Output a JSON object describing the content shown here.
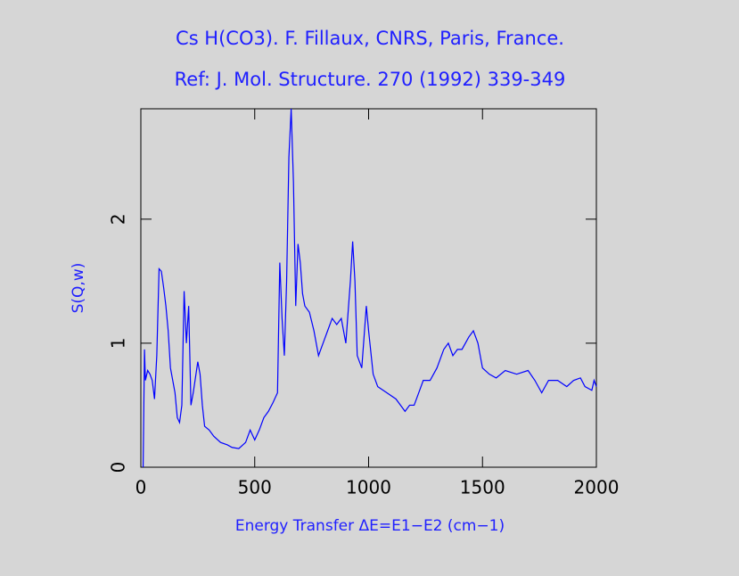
{
  "chart_data": {
    "type": "line",
    "title": "Cs H(CO3). F. Fillaux, CNRS, Paris, France.",
    "subtitle": "Ref: J. Mol. Structure. 270 (1992) 339-349",
    "x_label": "Energy Transfer ΔE=E1−E2 (cm−1)",
    "y_label": "S(Q,w)",
    "xlim": [
      0,
      2000
    ],
    "ylim": [
      0,
      2.89
    ],
    "xticks": [
      0,
      500,
      1000,
      1500,
      2000
    ],
    "yticks": [
      0,
      1,
      2
    ],
    "grid": false,
    "series": [
      {
        "name": "S(Q,w)",
        "color": "#0000ff",
        "x": [
          10,
          16,
          20,
          30,
          40,
          50,
          60,
          70,
          80,
          90,
          100,
          110,
          120,
          130,
          140,
          150,
          160,
          170,
          180,
          190,
          200,
          210,
          220,
          230,
          250,
          260,
          270,
          280,
          300,
          320,
          350,
          380,
          400,
          430,
          460,
          480,
          500,
          520,
          540,
          560,
          580,
          600,
          610,
          620,
          630,
          640,
          650,
          660,
          670,
          680,
          690,
          700,
          710,
          720,
          740,
          760,
          780,
          800,
          820,
          840,
          860,
          880,
          900,
          920,
          930,
          940,
          950,
          970,
          990,
          1000,
          1020,
          1040,
          1080,
          1120,
          1160,
          1180,
          1200,
          1220,
          1240,
          1270,
          1300,
          1330,
          1350,
          1370,
          1390,
          1410,
          1440,
          1460,
          1480,
          1500,
          1530,
          1560,
          1600,
          1650,
          1700,
          1730,
          1760,
          1790,
          1830,
          1870,
          1900,
          1930,
          1950,
          1980,
          1990,
          2000
        ],
        "values": [
          0,
          0.95,
          0.7,
          0.78,
          0.75,
          0.7,
          0.55,
          0.9,
          1.6,
          1.58,
          1.45,
          1.3,
          1.1,
          0.8,
          0.7,
          0.6,
          0.4,
          0.36,
          0.5,
          1.42,
          1.0,
          1.3,
          0.5,
          0.6,
          0.85,
          0.75,
          0.5,
          0.33,
          0.3,
          0.25,
          0.2,
          0.18,
          0.16,
          0.15,
          0.2,
          0.3,
          0.22,
          0.3,
          0.4,
          0.45,
          0.52,
          0.6,
          1.65,
          1.2,
          0.9,
          1.5,
          2.5,
          2.89,
          2.3,
          1.3,
          1.8,
          1.65,
          1.4,
          1.3,
          1.25,
          1.1,
          0.9,
          1.0,
          1.1,
          1.2,
          1.15,
          1.2,
          1.0,
          1.5,
          1.82,
          1.5,
          0.9,
          0.8,
          1.3,
          1.1,
          0.75,
          0.65,
          0.6,
          0.55,
          0.45,
          0.5,
          0.5,
          0.6,
          0.7,
          0.7,
          0.8,
          0.95,
          1.0,
          0.9,
          0.95,
          0.95,
          1.05,
          1.1,
          1.0,
          0.8,
          0.75,
          0.72,
          0.78,
          0.75,
          0.78,
          0.7,
          0.6,
          0.7,
          0.7,
          0.65,
          0.7,
          0.72,
          0.65,
          0.62,
          0.7,
          0.65
        ]
      }
    ]
  }
}
